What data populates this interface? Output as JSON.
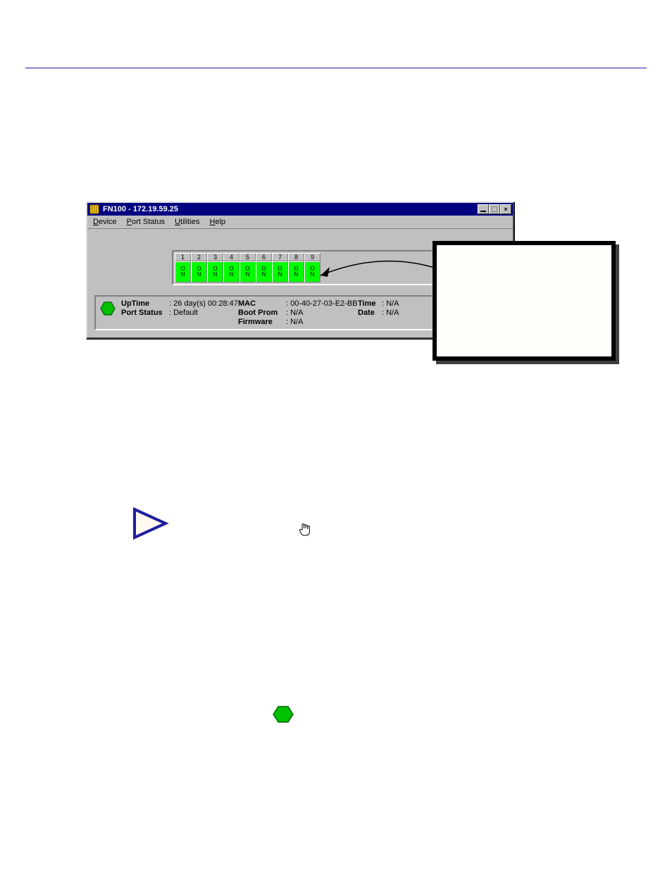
{
  "window": {
    "title": "FN100 - 172.19.59.25",
    "titlebar_color": "#000080",
    "titlebar_text_color": "#ffffff",
    "chrome_bg": "#c0c0c0",
    "menu": {
      "device": {
        "label": "Device",
        "underline": "D"
      },
      "port_status": {
        "label": "Port Status",
        "underline": "P"
      },
      "utilities": {
        "label": "Utilities",
        "underline": "U"
      },
      "help": {
        "label": "Help",
        "underline": "H"
      }
    },
    "ports": [
      {
        "num": "1",
        "state": "ON",
        "color": "#00ff00"
      },
      {
        "num": "2",
        "state": "ON",
        "color": "#00ff00"
      },
      {
        "num": "3",
        "state": "ON",
        "color": "#00ff00"
      },
      {
        "num": "4",
        "state": "ON",
        "color": "#00ff00"
      },
      {
        "num": "5",
        "state": "ON",
        "color": "#00ff00"
      },
      {
        "num": "6",
        "state": "ON",
        "color": "#00ff00"
      },
      {
        "num": "7",
        "state": "ON",
        "color": "#00ff00"
      },
      {
        "num": "8",
        "state": "ON",
        "color": "#00ff00"
      },
      {
        "num": "9",
        "state": "ON",
        "color": "#00ff00"
      }
    ],
    "info": {
      "uptime_label": "UpTime",
      "uptime_value": ": 26 day(s) 00:28:47",
      "port_status_label": "Port Status",
      "port_status_value": ": Default",
      "mac_label": "MAC",
      "mac_value": ": 00-40-27-03-E2-BB",
      "boot_prom_label": "Boot Prom",
      "boot_prom_value": ": N/A",
      "firmware_label": "Firmware",
      "firmware_value": ": N/A",
      "time_label": "Time",
      "time_value": ": N/A",
      "date_label": "Date",
      "date_value": ": N/A"
    },
    "status_hex_color": "#00c000"
  },
  "icons": {
    "play_triangle_stroke": "#1e1e9e",
    "play_triangle_fill": "#fff8ee",
    "inline_hex_fill": "#00c000",
    "inline_hex_stroke": "#006000"
  }
}
